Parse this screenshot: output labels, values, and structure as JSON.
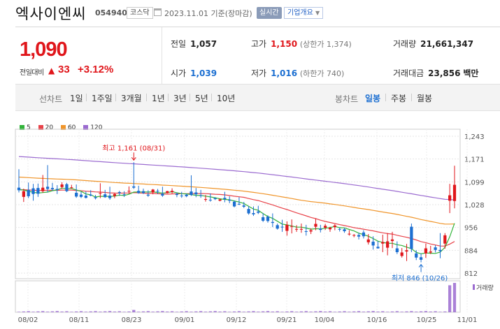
{
  "header": {
    "name": "엑사이엔씨",
    "code": "054940",
    "market": "코스닥",
    "date": "2023.11.01",
    "basis": "기준(장마감)",
    "realtime": "실시간",
    "company_info": "기업개요"
  },
  "quote": {
    "price": "1,090",
    "change_label": "전일대비",
    "change": "33",
    "change_pct": "+3.12%"
  },
  "stats": {
    "prev_label": "전일",
    "prev": "1,057",
    "open_label": "시가",
    "open": "1,039",
    "high_label": "고가",
    "high": "1,150",
    "upper_limit": "(상한가 1,374)",
    "low_label": "저가",
    "low": "1,016",
    "lower_limit": "(하한가 740)",
    "volume_label": "거래량",
    "volume": "21,661,347",
    "amount_label": "거래대금",
    "amount": "23,856",
    "amount_unit": "백만"
  },
  "period_bar": {
    "line_label": "선차트",
    "line_ranges": [
      "1일",
      "1주일",
      "3개월",
      "1년",
      "3년",
      "5년",
      "10년"
    ],
    "candle_label": "봉차트",
    "candle_ranges": [
      "일봉",
      "주봉",
      "월봉"
    ],
    "active_candle": "일봉"
  },
  "colors": {
    "up": "#e0161b",
    "down": "#1c6fd1",
    "ma5": "#32b43a",
    "ma20": "#e8434a",
    "ma60": "#f0952a",
    "ma120": "#9b6bd0"
  },
  "chart_data": {
    "type": "candlestick",
    "legend": [
      "5",
      "20",
      "60",
      "120"
    ],
    "y_ticks": [
      "1,243",
      "1,171",
      "1,099",
      "1,028",
      "956",
      "884",
      "812"
    ],
    "y_range": [
      812,
      1243
    ],
    "x_ticks": [
      "08/02",
      "08/11",
      "08/23",
      "09/01",
      "09/12",
      "09/21",
      "10/04",
      "10/16",
      "10/25",
      "11/01"
    ],
    "annotations": {
      "max": "최고 1,161 (08/31)",
      "min": "최저 846 (10/26)"
    },
    "volume_label": "거래량",
    "candles": [
      [
        1081,
        1139,
        1066,
        1073
      ],
      [
        1052,
        1078,
        1036,
        1070
      ],
      [
        1074,
        1097,
        1048,
        1054
      ],
      [
        1079,
        1093,
        1040,
        1061
      ],
      [
        1080,
        1094,
        1052,
        1062
      ],
      [
        1070,
        1121,
        1065,
        1081
      ],
      [
        1084,
        1152,
        1066,
        1077
      ],
      [
        1080,
        1096,
        1071,
        1076
      ],
      [
        1077,
        1089,
        1061,
        1074
      ],
      [
        1083,
        1098,
        1077,
        1091
      ],
      [
        1092,
        1096,
        1067,
        1070
      ],
      [
        1082,
        1090,
        1078,
        1082
      ],
      [
        1065,
        1091,
        1049,
        1053
      ],
      [
        1059,
        1068,
        1048,
        1052
      ],
      [
        1056,
        1069,
        1047,
        1049
      ],
      [
        1059,
        1073,
        1054,
        1056
      ],
      [
        1051,
        1058,
        1044,
        1048
      ],
      [
        1063,
        1095,
        1048,
        1064
      ],
      [
        1060,
        1074,
        1049,
        1051
      ],
      [
        1056,
        1084,
        1043,
        1048
      ],
      [
        1055,
        1065,
        1048,
        1061
      ],
      [
        1067,
        1071,
        1055,
        1064
      ],
      [
        1060,
        1070,
        1052,
        1058
      ],
      [
        1069,
        1085,
        1062,
        1071
      ],
      [
        1085,
        1161,
        1077,
        1081
      ],
      [
        1071,
        1087,
        1062,
        1064
      ],
      [
        1070,
        1078,
        1061,
        1064
      ],
      [
        1059,
        1073,
        1052,
        1056
      ],
      [
        1066,
        1077,
        1060,
        1075
      ],
      [
        1071,
        1077,
        1061,
        1070
      ],
      [
        1062,
        1084,
        1052,
        1056
      ],
      [
        1064,
        1071,
        1063,
        1070
      ],
      [
        1067,
        1079,
        1063,
        1071
      ],
      [
        1062,
        1066,
        1051,
        1058
      ],
      [
        1056,
        1068,
        1049,
        1055
      ],
      [
        1059,
        1062,
        1051,
        1054
      ],
      [
        1069,
        1120,
        1055,
        1058
      ],
      [
        1066,
        1080,
        1051,
        1060
      ],
      [
        1057,
        1074,
        1049,
        1055
      ],
      [
        1045,
        1058,
        1037,
        1045
      ],
      [
        1043,
        1063,
        1037,
        1041
      ],
      [
        1048,
        1051,
        1042,
        1045
      ],
      [
        1040,
        1047,
        1038,
        1044
      ],
      [
        1049,
        1068,
        1035,
        1045
      ],
      [
        1043,
        1054,
        1032,
        1040
      ],
      [
        1037,
        1041,
        1019,
        1022
      ],
      [
        1030,
        1051,
        1026,
        1028
      ],
      [
        1025,
        1036,
        1017,
        1021
      ],
      [
        1014,
        1023,
        996,
        1000
      ],
      [
        1001,
        1022,
        992,
        997
      ],
      [
        1006,
        1024,
        998,
        1002
      ],
      [
        988,
        1001,
        973,
        977
      ],
      [
        990,
        994,
        971,
        976
      ],
      [
        973,
        1000,
        957,
        970
      ],
      [
        963,
        968,
        949,
        952
      ],
      [
        958,
        980,
        942,
        957
      ],
      [
        945,
        975,
        930,
        964
      ],
      [
        960,
        981,
        937,
        960
      ],
      [
        950,
        963,
        942,
        951
      ],
      [
        950,
        968,
        939,
        951
      ],
      [
        944,
        964,
        930,
        943
      ],
      [
        943,
        953,
        935,
        947
      ],
      [
        958,
        984,
        947,
        967
      ],
      [
        952,
        964,
        940,
        948
      ],
      [
        955,
        967,
        948,
        961
      ],
      [
        950,
        958,
        942,
        955
      ],
      [
        957,
        966,
        947,
        962
      ],
      [
        951,
        955,
        943,
        950
      ],
      [
        950,
        955,
        939,
        944
      ],
      [
        934,
        947,
        930,
        936
      ],
      [
        931,
        935,
        925,
        932
      ],
      [
        932,
        939,
        918,
        927
      ],
      [
        940,
        947,
        921,
        928
      ],
      [
        909,
        935,
        902,
        918
      ],
      [
        911,
        928,
        886,
        899
      ],
      [
        895,
        913,
        889,
        890
      ],
      [
        905,
        933,
        878,
        910
      ],
      [
        892,
        938,
        868,
        912
      ],
      [
        913,
        942,
        891,
        918
      ],
      [
        890,
        912,
        872,
        878
      ],
      [
        866,
        891,
        861,
        877
      ],
      [
        880,
        904,
        850,
        884
      ],
      [
        958,
        968,
        878,
        888
      ],
      [
        874,
        884,
        853,
        861
      ],
      [
        862,
        874,
        846,
        854
      ],
      [
        874,
        905,
        860,
        890
      ],
      [
        877,
        898,
        872,
        880
      ],
      [
        893,
        900,
        877,
        885
      ],
      [
        885,
        938,
        859,
        881
      ],
      [
        905,
        938,
        889,
        931
      ],
      [
        1040,
        1093,
        1001,
        1057
      ],
      [
        1039,
        1150,
        1016,
        1090
      ]
    ]
  }
}
